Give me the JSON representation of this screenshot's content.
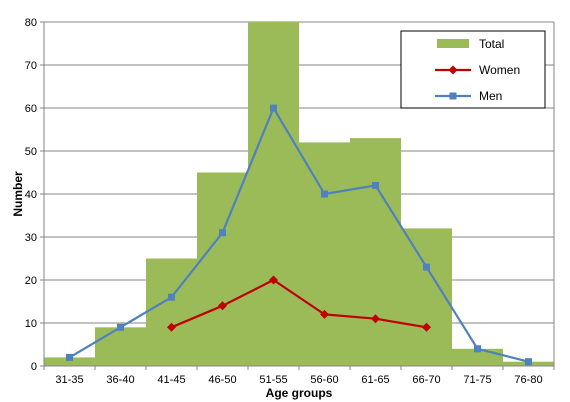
{
  "chart_data": {
    "type": "bar",
    "categories": [
      "31-35",
      "36-40",
      "41-45",
      "46-50",
      "51-55",
      "56-60",
      "61-65",
      "66-70",
      "71-75",
      "76-80"
    ],
    "series": [
      {
        "name": "Total",
        "kind": "bar",
        "color": "#9BBB59",
        "values": [
          2,
          9,
          25,
          45,
          80,
          52,
          53,
          32,
          4,
          1
        ]
      },
      {
        "name": "Women",
        "kind": "line",
        "marker": "diamond",
        "color": "#C00000",
        "values": [
          null,
          null,
          9,
          14,
          20,
          12,
          11,
          9,
          null,
          null
        ]
      },
      {
        "name": "Men",
        "kind": "line",
        "marker": "square",
        "color": "#4F81BD",
        "values": [
          2,
          9,
          16,
          31,
          60,
          40,
          42,
          23,
          4,
          1
        ]
      }
    ],
    "xlabel": "Age groups",
    "ylabel": "Number",
    "ylim": [
      0,
      80
    ],
    "yticks": [
      0,
      10,
      20,
      30,
      40,
      50,
      60,
      70,
      80
    ],
    "grid": true,
    "legend": "top-right"
  }
}
